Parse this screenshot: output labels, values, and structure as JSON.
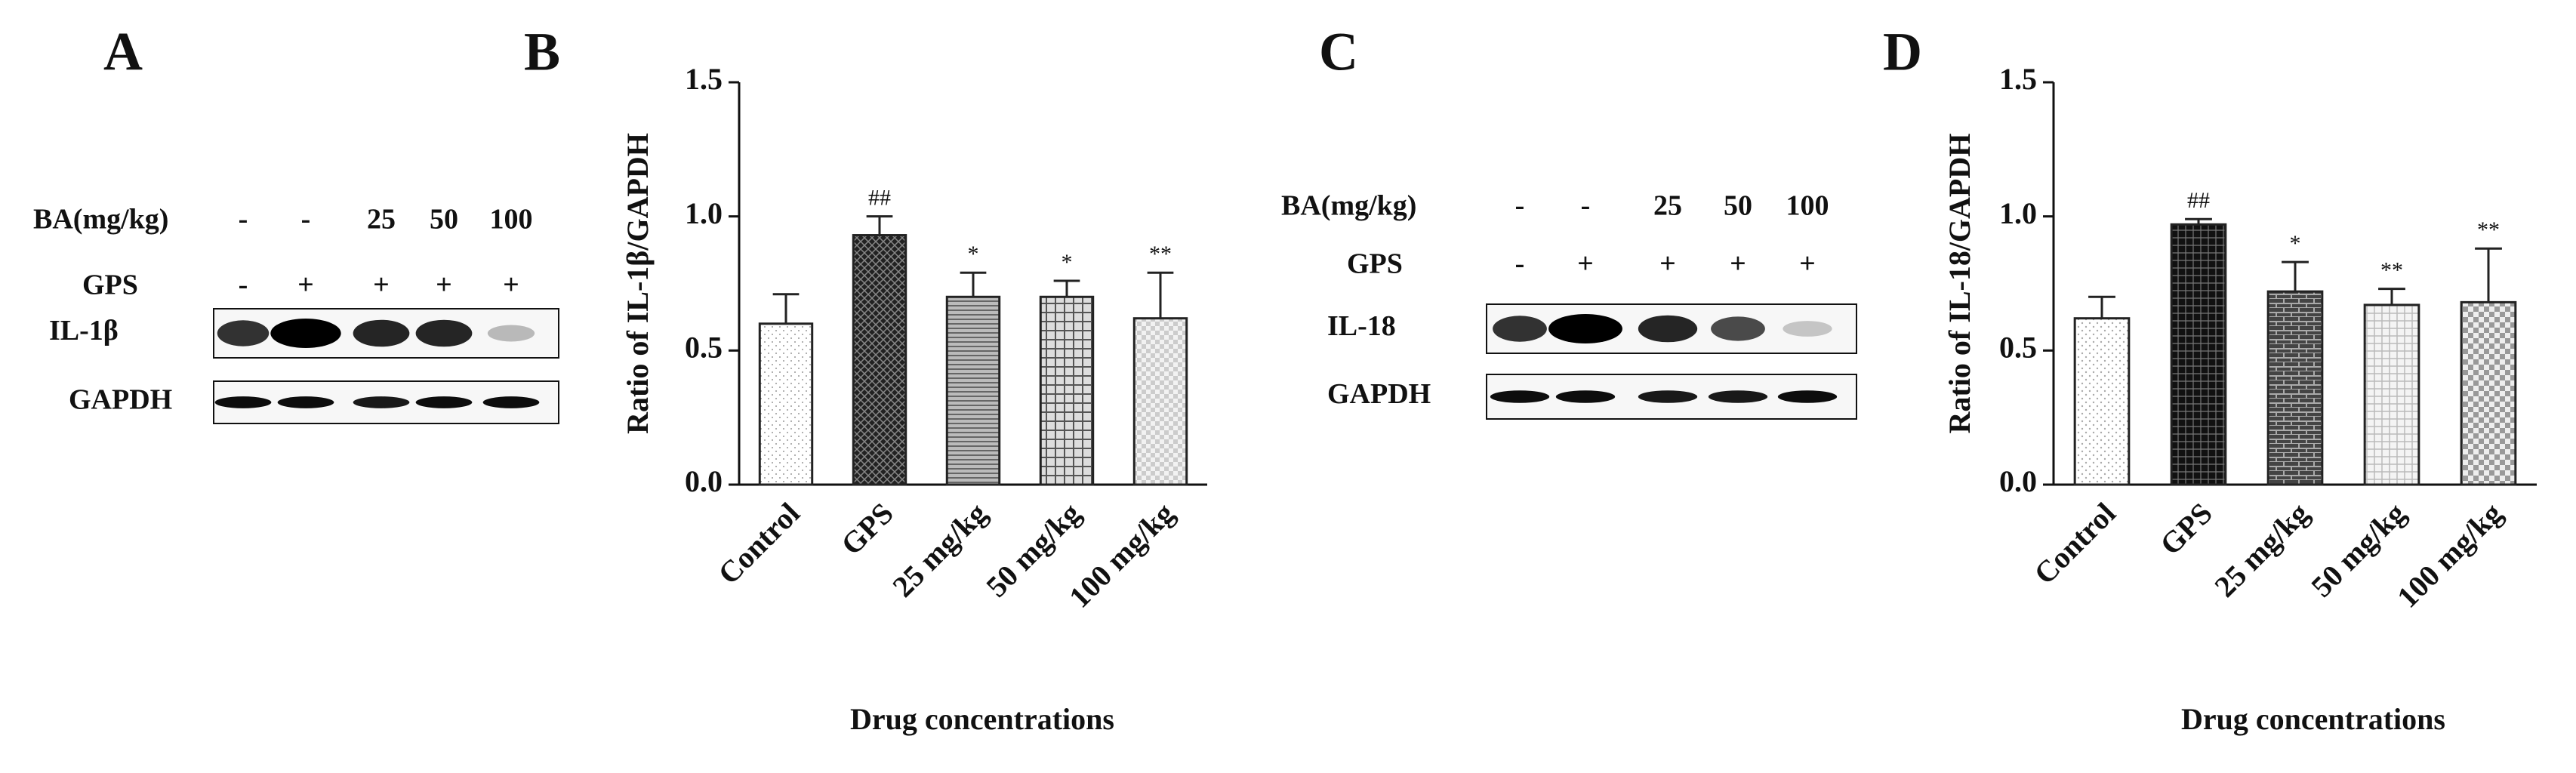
{
  "chart_data": [
    {
      "type": "bar",
      "panel": "B",
      "y_label": "Ratio of IL-1β/GAPDH",
      "x_label": "Drug concentrations",
      "categories": [
        "Control",
        "GPS",
        "25 mg/kg",
        "50 mg/kg",
        "100 mg/kg"
      ],
      "values": [
        0.6,
        0.93,
        0.7,
        0.7,
        0.62
      ],
      "errors": [
        0.11,
        0.07,
        0.09,
        0.06,
        0.17
      ],
      "significance": [
        null,
        "##",
        "*",
        "*",
        "**"
      ],
      "ylim": [
        0,
        1.5
      ],
      "yticks": [
        {
          "value": 0,
          "label": "0.0"
        },
        {
          "value": 0.5,
          "label": "0.5"
        },
        {
          "value": 1,
          "label": "1.0"
        },
        {
          "value": 1.5,
          "label": "1.5"
        }
      ],
      "color": "#222222"
    },
    {
      "type": "bar",
      "panel": "D",
      "y_label": "Ratio of IL-18/GAPDH",
      "x_label": "Drug concentrations",
      "categories": [
        "Control",
        "GPS",
        "25 mg/kg",
        "50 mg/kg",
        "100 mg/kg"
      ],
      "values": [
        0.62,
        0.97,
        0.72,
        0.67,
        0.68
      ],
      "errors": [
        0.08,
        0.02,
        0.11,
        0.06,
        0.2
      ],
      "significance": [
        null,
        "##",
        "*",
        "**",
        "**"
      ],
      "ylim": [
        0,
        1.5
      ],
      "yticks": [
        {
          "value": 0,
          "label": "0.0"
        },
        {
          "value": 0.5,
          "label": "0.5"
        },
        {
          "value": 1,
          "label": "1.0"
        },
        {
          "value": 1.5,
          "label": "1.5"
        }
      ],
      "color": "#222222"
    }
  ],
  "blots": [
    {
      "panel": "A",
      "rows": [
        {
          "label": "BA(mg/kg)",
          "entries": [
            "-",
            "-",
            "25",
            "50",
            "100"
          ]
        },
        {
          "label": "GPS",
          "entries": [
            "-",
            "+",
            "+",
            "+",
            "+"
          ]
        }
      ],
      "bands": [
        "IL-1β",
        "GAPDH"
      ]
    },
    {
      "panel": "C",
      "rows": [
        {
          "label": "BA(mg/kg)",
          "entries": [
            "-",
            "-",
            "25",
            "50",
            "100"
          ]
        },
        {
          "label": "GPS",
          "entries": [
            "-",
            "+",
            "+",
            "+",
            "+"
          ]
        }
      ],
      "bands": [
        "IL-18",
        "GAPDH"
      ]
    }
  ]
}
